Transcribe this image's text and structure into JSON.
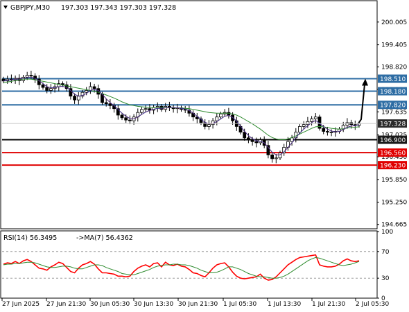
{
  "header": {
    "symbol": "GBPJPY,M30",
    "ohlc": "197.303 197.343 197.303 197.328",
    "indicator": "RSI(14) 56.3495",
    "indicator_ma": "->MA(7) 56.4362"
  },
  "colors": {
    "blue_level": "#2e6da4",
    "red_level": "#e00000",
    "black_level": "#000000",
    "price_tag": "#2a2a2a",
    "ma_green": "#2e8b2e",
    "ma_red": "#d21e1e",
    "ma_blue": "#1f3aa8",
    "rsi_red": "#ff0000",
    "rsi_ma": "#2e8b2e"
  },
  "chart_data": [
    {
      "type": "candlestick",
      "symbol": "GBPJPY",
      "timeframe": "M30",
      "ylim": [
        194.55,
        200.55
      ],
      "y_ticks": [
        "200.005",
        "199.405",
        "198.820",
        "198.230",
        "197.635",
        "197.025",
        "196.450",
        "195.850",
        "195.250",
        "194.665"
      ],
      "x_ticks": [
        "27 Jun 2025",
        "27 Jun 21:30",
        "30 Jun 05:30",
        "30 Jun 13:30",
        "30 Jun 21:30",
        "1 Jul 05:30",
        "1 Jul 13:30",
        "1 Jul 21:30",
        "2 Jul 05:30"
      ],
      "levels": [
        {
          "value": 198.51,
          "label": "198.510",
          "color": "blue"
        },
        {
          "value": 198.18,
          "label": "198.180",
          "color": "blue"
        },
        {
          "value": 197.82,
          "label": "197.820",
          "color": "blue"
        },
        {
          "value": 196.9,
          "label": "196.900",
          "color": "black"
        },
        {
          "value": 196.56,
          "label": "196.560",
          "color": "red"
        },
        {
          "value": 196.23,
          "label": "196.230",
          "color": "red"
        }
      ],
      "current_price": {
        "value": 197.328,
        "label": "197.328"
      },
      "close_series": [
        198.45,
        198.5,
        198.48,
        198.52,
        198.46,
        198.55,
        198.6,
        198.58,
        198.5,
        198.35,
        198.28,
        198.2,
        198.25,
        198.3,
        198.38,
        198.35,
        198.25,
        198.05,
        197.95,
        198.05,
        198.15,
        198.2,
        198.3,
        198.25,
        198.1,
        197.88,
        197.85,
        197.8,
        197.72,
        197.55,
        197.48,
        197.42,
        197.4,
        197.5,
        197.62,
        197.7,
        197.72,
        197.68,
        197.75,
        197.78,
        197.7,
        197.78,
        197.75,
        197.72,
        197.74,
        197.7,
        197.68,
        197.6,
        197.5,
        197.45,
        197.35,
        197.25,
        197.3,
        197.4,
        197.5,
        197.58,
        197.62,
        197.55,
        197.4,
        197.25,
        197.1,
        196.95,
        196.9,
        196.85,
        196.82,
        196.9,
        196.75,
        196.5,
        196.4,
        196.42,
        196.55,
        196.7,
        196.85,
        196.95,
        197.1,
        197.25,
        197.3,
        197.38,
        197.45,
        197.5,
        197.2,
        197.12,
        197.1,
        197.1,
        197.12,
        197.18,
        197.28,
        197.35,
        197.3,
        197.28,
        197.33
      ],
      "projection": {
        "from": 197.33,
        "to": 198.51
      },
      "series": [
        {
          "name": "MA green",
          "values": [
            198.4,
            198.42,
            198.44,
            198.46,
            198.48,
            198.5,
            198.5,
            198.5,
            198.48,
            198.46,
            198.44,
            198.42,
            198.4,
            198.38,
            198.36,
            198.34,
            198.32,
            198.3,
            198.28,
            198.26,
            198.24,
            198.22,
            198.2,
            198.18,
            198.15,
            198.12,
            198.08,
            198.04,
            198.0,
            197.95,
            197.9,
            197.86,
            197.82,
            197.8,
            197.78,
            197.77,
            197.76,
            197.75,
            197.75,
            197.75,
            197.75,
            197.75,
            197.75,
            197.74,
            197.74,
            197.74,
            197.73,
            197.72,
            197.7,
            197.68,
            197.66,
            197.64,
            197.62,
            197.61,
            197.6,
            197.6,
            197.6,
            197.6,
            197.58,
            197.55,
            197.5,
            197.44,
            197.38,
            197.32,
            197.25,
            197.18,
            197.1,
            197.02,
            196.96,
            196.92,
            196.9,
            196.9,
            196.92,
            196.96,
            197.0,
            197.05,
            197.1,
            197.15,
            197.2,
            197.24,
            197.25,
            197.24,
            197.22,
            197.2,
            197.19,
            197.18,
            197.19,
            197.21,
            197.22,
            197.23,
            197.24
          ]
        },
        {
          "name": "MA red",
          "values": [
            198.45,
            198.47,
            198.48,
            198.5,
            198.5,
            198.52,
            198.54,
            198.55,
            198.52,
            198.46,
            198.38,
            198.3,
            198.27,
            198.27,
            198.3,
            198.31,
            198.28,
            198.2,
            198.1,
            198.05,
            198.07,
            198.12,
            198.2,
            198.23,
            198.2,
            198.1,
            197.98,
            197.88,
            197.8,
            197.7,
            197.6,
            197.52,
            197.46,
            197.45,
            197.5,
            197.57,
            197.63,
            197.67,
            197.7,
            197.73,
            197.73,
            197.74,
            197.75,
            197.75,
            197.74,
            197.73,
            197.71,
            197.67,
            197.6,
            197.52,
            197.44,
            197.36,
            197.32,
            197.33,
            197.38,
            197.45,
            197.52,
            197.54,
            197.49,
            197.39,
            197.26,
            197.12,
            197.01,
            196.93,
            196.87,
            196.86,
            196.82,
            196.7,
            196.57,
            196.5,
            196.5,
            196.58,
            196.7,
            196.82,
            196.95,
            197.08,
            197.18,
            197.27,
            197.35,
            197.41,
            197.33,
            197.25,
            197.18,
            197.13,
            197.11,
            197.12,
            197.17,
            197.23,
            197.26,
            197.27,
            197.3
          ]
        },
        {
          "name": "MA blue",
          "values": [
            198.45,
            198.47,
            198.48,
            198.5,
            198.5,
            198.52,
            198.54,
            198.55,
            198.52,
            198.46,
            198.38,
            198.3,
            198.27,
            198.27,
            198.3,
            198.31,
            198.28,
            198.2,
            198.1,
            198.05,
            198.07,
            198.12,
            198.2,
            198.23,
            198.2,
            198.1,
            197.98,
            197.88,
            197.8,
            197.7,
            197.6,
            197.52,
            197.46,
            197.45,
            197.5,
            197.57,
            197.63,
            197.67,
            197.7,
            197.73,
            197.73,
            197.74,
            197.75,
            197.75,
            197.74,
            197.73,
            197.71,
            197.67,
            197.6,
            197.52,
            197.44,
            197.36,
            197.32,
            197.33,
            197.38,
            197.45,
            197.52,
            197.54,
            197.49,
            197.39,
            197.26,
            197.12,
            197.01,
            196.93,
            196.87,
            196.86,
            196.82,
            196.7,
            196.57,
            196.5,
            196.5,
            196.58,
            196.7,
            196.82,
            196.95,
            197.08,
            197.18,
            197.27,
            197.35,
            197.41,
            197.33,
            197.25,
            197.18,
            197.13,
            197.11,
            197.12,
            197.17,
            197.23,
            197.26,
            197.27,
            197.3
          ]
        }
      ]
    },
    {
      "type": "line",
      "name": "RSI(14)",
      "ylim": [
        0,
        100
      ],
      "y_ticks": [
        "100",
        "70",
        "30",
        "0"
      ],
      "levels": [
        70,
        30
      ],
      "series": [
        {
          "name": "RSI(14)",
          "values": [
            51,
            53,
            52,
            55,
            52,
            56,
            58,
            55,
            50,
            45,
            44,
            42,
            47,
            50,
            54,
            52,
            46,
            40,
            38,
            45,
            50,
            52,
            55,
            51,
            44,
            38,
            38,
            37,
            36,
            33,
            33,
            32,
            33,
            40,
            45,
            48,
            50,
            47,
            52,
            53,
            47,
            54,
            50,
            49,
            51,
            48,
            47,
            43,
            38,
            37,
            34,
            32,
            38,
            45,
            50,
            52,
            53,
            47,
            39,
            33,
            30,
            29,
            30,
            31,
            32,
            36,
            30,
            27,
            28,
            32,
            38,
            44,
            50,
            54,
            58,
            61,
            62,
            63,
            64,
            65,
            50,
            48,
            47,
            47,
            48,
            51,
            56,
            59,
            56,
            55,
            56
          ]
        },
        {
          "name": "MA(7)",
          "values": [
            50,
            51,
            51,
            52,
            52,
            53,
            54,
            54,
            53,
            51,
            49,
            47,
            46,
            46,
            47,
            48,
            48,
            47,
            45,
            44,
            44,
            46,
            48,
            50,
            50,
            49,
            46,
            44,
            42,
            40,
            37,
            36,
            35,
            35,
            37,
            39,
            41,
            43,
            46,
            48,
            49,
            50,
            50,
            51,
            51,
            50,
            50,
            49,
            47,
            45,
            42,
            40,
            38,
            38,
            39,
            41,
            44,
            47,
            47,
            45,
            43,
            40,
            37,
            35,
            33,
            32,
            32,
            31,
            30,
            30,
            31,
            33,
            36,
            40,
            44,
            48,
            52,
            56,
            59,
            61,
            60,
            58,
            56,
            54,
            52,
            50,
            49,
            50,
            51,
            53,
            55
          ]
        }
      ]
    }
  ]
}
